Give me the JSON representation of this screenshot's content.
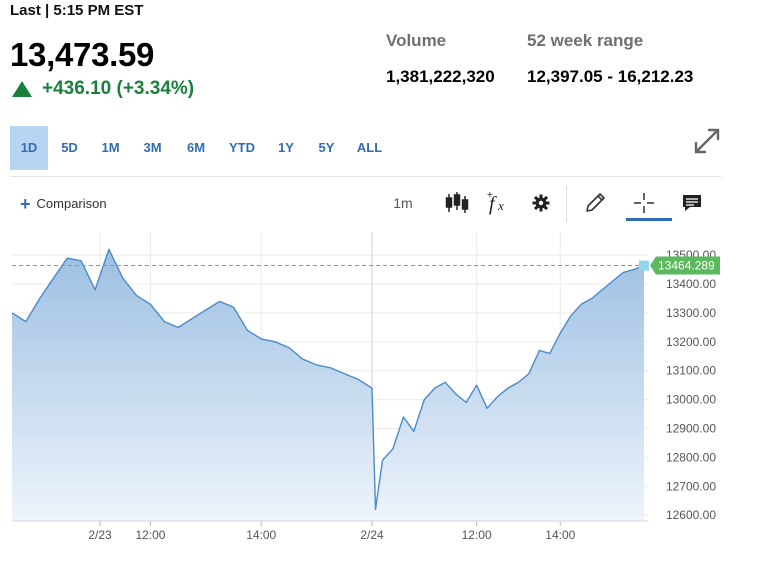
{
  "quote": {
    "last_label": "Last | 5:15 PM EST",
    "price": "13,473.59",
    "change": "+436.10 (+3.34%)",
    "direction": "up",
    "up_color": "#1a7f3b"
  },
  "stats": {
    "volume_label": "Volume",
    "volume_value": "1,381,222,320",
    "range_label": "52 week range",
    "range_value": "12,397.05 - 16,212.23"
  },
  "range_tabs": [
    "1D",
    "5D",
    "1M",
    "3M",
    "6M",
    "YTD",
    "1Y",
    "5Y",
    "ALL"
  ],
  "active_range": "1D",
  "toolbar": {
    "comparison_label": "Comparison",
    "interval_label": "1m",
    "icons": [
      "candlestick-icon",
      "function-icon",
      "gear-icon",
      "pencil-icon",
      "crosshair-icon",
      "comment-icon"
    ]
  },
  "chart_data": {
    "type": "area",
    "y_ticks": [
      13500,
      13400,
      13300,
      13200,
      13100,
      13000,
      12900,
      12800,
      12700,
      12600
    ],
    "y_tick_labels": [
      "13500.00",
      "13400.00",
      "13300.00",
      "13200.00",
      "13100.00",
      "13000.00",
      "12900.00",
      "12800.00",
      "12700.00",
      "12600.00"
    ],
    "ylim": [
      12580,
      13580
    ],
    "y_axis_side": "right",
    "x_ticks": [
      "2/23",
      "12:00",
      "14:00",
      "2/24",
      "12:00",
      "14:00"
    ],
    "session_break_label": "2/24",
    "last_value_label": "13464.289",
    "last_value": 13464.289,
    "reference_line": 13464.289,
    "line_color": "#4a8bc9",
    "fill_top": "#9dbfe2",
    "fill_bottom": "#eef4fb",
    "label_color": "#5cb85c",
    "grid": true,
    "sessions": [
      {
        "date": "2/23",
        "x": [
          "09:30",
          "09:45",
          "10:00",
          "10:15",
          "10:30",
          "10:45",
          "11:00",
          "11:15",
          "11:30",
          "11:45",
          "12:00",
          "12:15",
          "12:30",
          "12:45",
          "13:00",
          "13:15",
          "13:30",
          "13:45",
          "14:00",
          "14:15",
          "14:30",
          "14:45",
          "15:00",
          "15:15",
          "15:30",
          "15:45",
          "16:00"
        ],
        "values": [
          13300,
          13270,
          13350,
          13420,
          13490,
          13480,
          13380,
          13520,
          13420,
          13360,
          13330,
          13270,
          13250,
          13280,
          13310,
          13340,
          13320,
          13240,
          13210,
          13200,
          13180,
          13140,
          13120,
          13110,
          13090,
          13070,
          13040
        ]
      },
      {
        "date": "2/24",
        "x": [
          "09:30",
          "09:35",
          "09:45",
          "10:00",
          "10:15",
          "10:30",
          "10:45",
          "11:00",
          "11:15",
          "11:30",
          "11:45",
          "12:00",
          "12:15",
          "12:30",
          "12:45",
          "13:00",
          "13:15",
          "13:30",
          "13:45",
          "14:00",
          "14:15",
          "14:30",
          "14:45",
          "15:00",
          "15:15",
          "15:30",
          "15:45",
          "16:00"
        ],
        "values": [
          13040,
          12620,
          12790,
          12830,
          12940,
          12890,
          13000,
          13040,
          13060,
          13020,
          12990,
          13050,
          12970,
          13010,
          13040,
          13060,
          13090,
          13170,
          13160,
          13230,
          13290,
          13330,
          13350,
          13380,
          13410,
          13440,
          13450,
          13464
        ]
      }
    ]
  }
}
